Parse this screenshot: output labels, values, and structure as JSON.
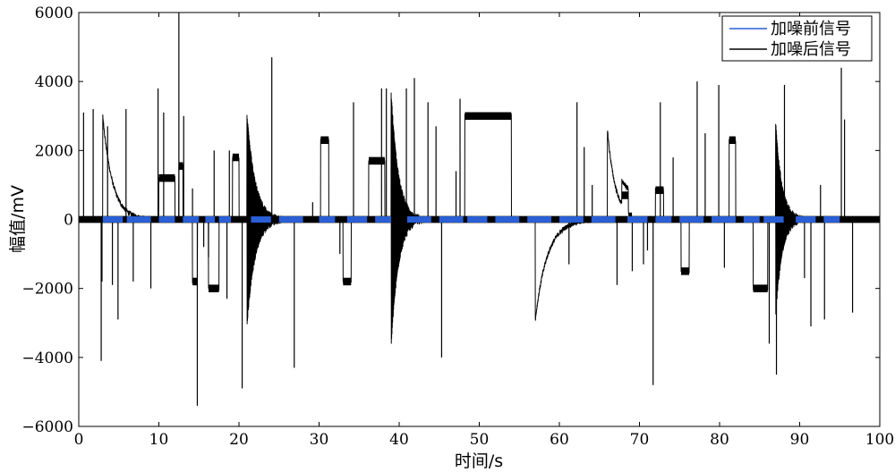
{
  "chart_data": {
    "type": "line",
    "title": "",
    "xlabel": "时间/s",
    "ylabel": "幅值/mV",
    "xlim": [
      0,
      100
    ],
    "ylim": [
      -6000,
      6000
    ],
    "xticks": [
      0,
      10,
      20,
      30,
      40,
      50,
      60,
      70,
      80,
      90,
      100
    ],
    "yticks": [
      -6000,
      -4000,
      -2000,
      0,
      2000,
      4000,
      6000
    ],
    "grid": false,
    "legend_position": "top-right",
    "series": [
      {
        "name": "加噪前信号",
        "color": "#2a5fd6",
        "kind": "dashes",
        "y": 0,
        "segments": [
          [
            3,
            5.5
          ],
          [
            6,
            9
          ],
          [
            10,
            12
          ],
          [
            13,
            15
          ],
          [
            15.8,
            17
          ],
          [
            17.5,
            19
          ],
          [
            21.5,
            24
          ],
          [
            25,
            28
          ],
          [
            30,
            32
          ],
          [
            33.5,
            36
          ],
          [
            37,
            39
          ],
          [
            41,
            44
          ],
          [
            45,
            48
          ],
          [
            48.5,
            51
          ],
          [
            52,
            55
          ],
          [
            56,
            59
          ],
          [
            60,
            63
          ],
          [
            64,
            67
          ],
          [
            68.5,
            71
          ],
          [
            72,
            74
          ],
          [
            75,
            78
          ],
          [
            79,
            82
          ],
          [
            83,
            85
          ],
          [
            85.5,
            88
          ],
          [
            89.5,
            92
          ],
          [
            93,
            95
          ]
        ]
      },
      {
        "name": "加噪后信号",
        "color": "#000000",
        "kind": "noisy",
        "steps": [
          {
            "x0": 10,
            "x1": 12,
            "y": 1200
          },
          {
            "x0": 12.5,
            "x1": 13,
            "y": 1550
          },
          {
            "x0": 14.2,
            "x1": 14.8,
            "y": -1800
          },
          {
            "x0": 16.2,
            "x1": 17.5,
            "y": -2000
          },
          {
            "x0": 19.2,
            "x1": 20,
            "y": 1800
          },
          {
            "x0": 30.2,
            "x1": 31.2,
            "y": 2300
          },
          {
            "x0": 33,
            "x1": 34,
            "y": -1800
          },
          {
            "x0": 36.2,
            "x1": 38.2,
            "y": 1700
          },
          {
            "x0": 48.2,
            "x1": 54,
            "y": 3000
          },
          {
            "x0": 67.8,
            "x1": 68.6,
            "y": 700
          },
          {
            "x0": 72,
            "x1": 73,
            "y": 850
          },
          {
            "x0": 75.2,
            "x1": 76.2,
            "y": -1500
          },
          {
            "x0": 81.2,
            "x1": 82,
            "y": 2300
          },
          {
            "x0": 84.2,
            "x1": 86,
            "y": -2000
          }
        ],
        "decays": [
          {
            "x0": 3,
            "amp": 3000,
            "tau": 1.2,
            "len": 6,
            "mode": "one"
          },
          {
            "x0": 21,
            "amp": 3100,
            "tau": 1.0,
            "len": 6,
            "mode": "env"
          },
          {
            "x0": 39,
            "amp": 3700,
            "tau": 0.9,
            "len": 6,
            "mode": "env"
          },
          {
            "x0": 57,
            "amp": -2900,
            "tau": 1.5,
            "len": 7,
            "mode": "one"
          },
          {
            "x0": 66,
            "amp": 2600,
            "tau": 1.0,
            "len": 3,
            "mode": "one"
          },
          {
            "x0": 87,
            "amp": 2800,
            "tau": 0.8,
            "len": 5,
            "mode": "env"
          }
        ],
        "spikes": [
          {
            "x": 0.6,
            "y": 3100
          },
          {
            "x": 1.8,
            "y": 3200
          },
          {
            "x": 2.8,
            "y": -4100
          },
          {
            "x": 2.9,
            "y": -1800
          },
          {
            "x": 3.6,
            "y": 2700
          },
          {
            "x": 4.2,
            "y": -1900
          },
          {
            "x": 4.9,
            "y": -2900
          },
          {
            "x": 5.9,
            "y": 3200
          },
          {
            "x": 6.8,
            "y": -1800
          },
          {
            "x": 9.0,
            "y": -2000
          },
          {
            "x": 9.9,
            "y": 3800
          },
          {
            "x": 10.6,
            "y": 3100
          },
          {
            "x": 12.5,
            "y": 6000
          },
          {
            "x": 13.1,
            "y": 3000
          },
          {
            "x": 14.2,
            "y": 900
          },
          {
            "x": 14.8,
            "y": -5400
          },
          {
            "x": 15.6,
            "y": -800
          },
          {
            "x": 16.2,
            "y": -1100
          },
          {
            "x": 16.9,
            "y": 2000
          },
          {
            "x": 18.5,
            "y": -2300
          },
          {
            "x": 18.8,
            "y": 2000
          },
          {
            "x": 20.4,
            "y": -4900
          },
          {
            "x": 24.1,
            "y": 4700
          },
          {
            "x": 26.9,
            "y": -4300
          },
          {
            "x": 29.2,
            "y": 500
          },
          {
            "x": 32.6,
            "y": -1000
          },
          {
            "x": 34.3,
            "y": 3400
          },
          {
            "x": 37.8,
            "y": 3800
          },
          {
            "x": 38.4,
            "y": 3800
          },
          {
            "x": 40.9,
            "y": 3800
          },
          {
            "x": 41.9,
            "y": 4100
          },
          {
            "x": 43.6,
            "y": 3400
          },
          {
            "x": 44.6,
            "y": 2700
          },
          {
            "x": 45.3,
            "y": -4000
          },
          {
            "x": 47.1,
            "y": 1400
          },
          {
            "x": 47.6,
            "y": 3500
          },
          {
            "x": 61.2,
            "y": -1300
          },
          {
            "x": 62.2,
            "y": 3400
          },
          {
            "x": 63.1,
            "y": 2100
          },
          {
            "x": 64.1,
            "y": 1000
          },
          {
            "x": 67.2,
            "y": -1900
          },
          {
            "x": 69.1,
            "y": -1500
          },
          {
            "x": 70.5,
            "y": -1300
          },
          {
            "x": 71.0,
            "y": -900
          },
          {
            "x": 71.7,
            "y": -4800
          },
          {
            "x": 72.6,
            "y": 3400
          },
          {
            "x": 74.2,
            "y": 1800
          },
          {
            "x": 77.2,
            "y": 4000
          },
          {
            "x": 78.2,
            "y": 2500
          },
          {
            "x": 79.9,
            "y": 3900
          },
          {
            "x": 80.6,
            "y": -1400
          },
          {
            "x": 86.2,
            "y": -3600
          },
          {
            "x": 87.1,
            "y": -4500
          },
          {
            "x": 88.1,
            "y": 3900
          },
          {
            "x": 90.6,
            "y": -1700
          },
          {
            "x": 91.4,
            "y": -3100
          },
          {
            "x": 92.6,
            "y": 1000
          },
          {
            "x": 93.1,
            "y": -2900
          },
          {
            "x": 95.2,
            "y": 4400
          },
          {
            "x": 95.6,
            "y": 2900
          },
          {
            "x": 96.6,
            "y": -2700
          }
        ]
      }
    ]
  }
}
